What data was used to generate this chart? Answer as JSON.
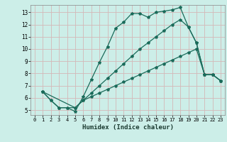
{
  "xlabel": "Humidex (Indice chaleur)",
  "bg_color": "#cceee8",
  "grid_color": "#aad8d0",
  "line_color": "#1a6b5a",
  "xlim": [
    -0.5,
    23.5
  ],
  "ylim": [
    4.6,
    13.6
  ],
  "xticks": [
    0,
    1,
    2,
    3,
    4,
    5,
    6,
    7,
    8,
    9,
    10,
    11,
    12,
    13,
    14,
    15,
    16,
    17,
    18,
    19,
    20,
    21,
    22,
    23
  ],
  "yticks": [
    5,
    6,
    7,
    8,
    9,
    10,
    11,
    12,
    13
  ],
  "line1_x": [
    1,
    2,
    3,
    4,
    5,
    6,
    7,
    8,
    9,
    10,
    11,
    12,
    13,
    14,
    15,
    16,
    17,
    18,
    19,
    20,
    21,
    22,
    23
  ],
  "line1_y": [
    6.5,
    5.8,
    5.2,
    5.2,
    4.9,
    6.1,
    7.5,
    8.9,
    10.2,
    11.7,
    12.2,
    12.9,
    12.9,
    12.6,
    13.0,
    13.1,
    13.2,
    13.4,
    11.8,
    10.5,
    7.9,
    7.9,
    7.4
  ],
  "line2_x": [
    1,
    2,
    3,
    4,
    5,
    6,
    7,
    8,
    9,
    10,
    11,
    12,
    13,
    14,
    15,
    16,
    17,
    18,
    19,
    20,
    21,
    22,
    23
  ],
  "line2_y": [
    6.5,
    5.8,
    5.2,
    5.2,
    5.2,
    5.8,
    6.4,
    7.0,
    7.6,
    8.2,
    8.8,
    9.4,
    10.0,
    10.5,
    11.0,
    11.5,
    12.0,
    12.4,
    11.8,
    10.5,
    7.9,
    7.9,
    7.4
  ],
  "line3_x": [
    1,
    5,
    6,
    7,
    8,
    9,
    10,
    11,
    12,
    13,
    14,
    15,
    16,
    17,
    18,
    19,
    20,
    21,
    22,
    23
  ],
  "line3_y": [
    6.5,
    5.2,
    5.8,
    6.1,
    6.4,
    6.7,
    7.0,
    7.3,
    7.6,
    7.9,
    8.2,
    8.5,
    8.8,
    9.1,
    9.4,
    9.7,
    10.0,
    7.9,
    7.9,
    7.4
  ]
}
